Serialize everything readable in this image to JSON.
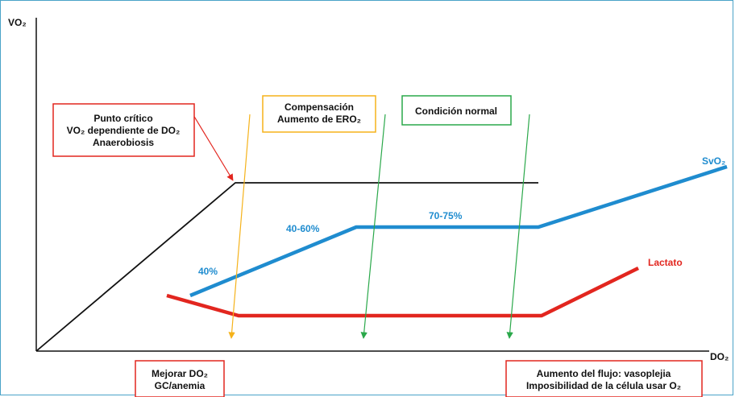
{
  "axes": {
    "y_label": "VO₂",
    "x_label": "DO₂"
  },
  "boxes": {
    "critical": {
      "lines": [
        "Punto crítico",
        "VO₂ dependiente de DO₂",
        "Anaerobiosis"
      ],
      "color": "#e2261f"
    },
    "compensation": {
      "lines": [
        "Compensación",
        "Aumento de ERO₂"
      ],
      "color": "#f5b21a"
    },
    "normal": {
      "lines": [
        "Condición normal"
      ],
      "color": "#2aa84a"
    },
    "improve": {
      "lines": [
        "Mejorar DO₂",
        "GC/anemia"
      ],
      "color": "#e2261f"
    },
    "flow": {
      "lines": [
        "Aumento del flujo: vasoplejia",
        "Imposibilidad de la célula usar O₂"
      ],
      "color": "#e2261f"
    }
  },
  "labels": {
    "svo2": "SvO₂",
    "lactato": "Lactato",
    "p40": "40%",
    "p4060": "40-60%",
    "p7075": "70-75%"
  },
  "colors": {
    "blue": "#1f8ccf",
    "red": "#e2261f",
    "black": "#111111",
    "green": "#2aa84a",
    "yellow": "#f5b21a",
    "frame": "#4aa3c8"
  }
}
